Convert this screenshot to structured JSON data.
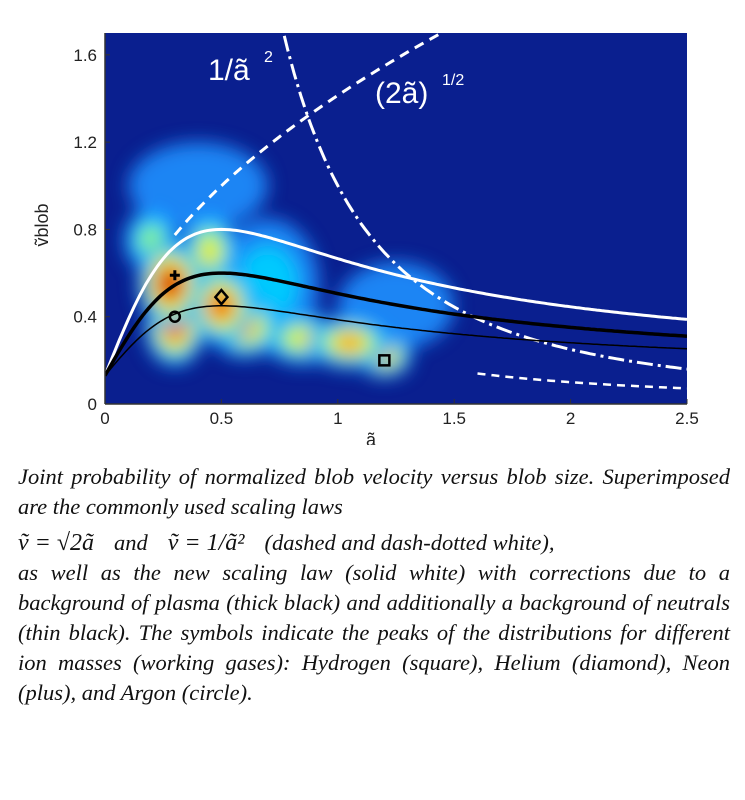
{
  "chart_data": {
    "type": "heatmap",
    "title": "",
    "xlabel": "ã",
    "ylabel": "ṽblob",
    "xlim": [
      0,
      2.5
    ],
    "ylim": [
      0,
      1.7
    ],
    "xticks": [
      "0",
      "0.5",
      "1",
      "1.5",
      "2",
      "2.5"
    ],
    "yticks": [
      "0",
      "0.4",
      "0.8",
      "1.2",
      "1.6"
    ],
    "colormap": [
      "#0a1f8f",
      "#1e90ff",
      "#00d2ff",
      "#9cff5a",
      "#ffe500",
      "#ff7a00",
      "#e01e00",
      "#b00000"
    ],
    "heat_blobs": [
      {
        "x": 0.2,
        "y": 0.75,
        "w": 0.12,
        "h": 0.15,
        "i": 0.45
      },
      {
        "x": 0.28,
        "y": 0.55,
        "w": 0.14,
        "h": 0.2,
        "i": 0.95
      },
      {
        "x": 0.3,
        "y": 0.35,
        "w": 0.13,
        "h": 0.18,
        "i": 0.9
      },
      {
        "x": 0.45,
        "y": 0.7,
        "w": 0.12,
        "h": 0.18,
        "i": 0.55
      },
      {
        "x": 0.5,
        "y": 0.45,
        "w": 0.14,
        "h": 0.18,
        "i": 0.85
      },
      {
        "x": 0.6,
        "y": 0.35,
        "w": 0.16,
        "h": 0.14,
        "i": 0.65
      },
      {
        "x": 0.85,
        "y": 0.3,
        "w": 0.18,
        "h": 0.12,
        "i": 0.55
      },
      {
        "x": 1.05,
        "y": 0.28,
        "w": 0.18,
        "h": 0.12,
        "i": 0.75
      },
      {
        "x": 1.2,
        "y": 0.22,
        "w": 0.12,
        "h": 0.1,
        "i": 0.7
      },
      {
        "x": 0.7,
        "y": 0.55,
        "w": 0.22,
        "h": 0.3,
        "i": 0.25
      },
      {
        "x": 1.25,
        "y": 0.45,
        "w": 0.25,
        "h": 0.2,
        "i": 0.2
      },
      {
        "x": 0.4,
        "y": 1.0,
        "w": 0.3,
        "h": 0.2,
        "i": 0.15
      }
    ],
    "curves": [
      {
        "name": "(2ã)^1/2",
        "style": "dashed white"
      },
      {
        "name": "1/ã^2",
        "style": "dash-dotted white"
      },
      {
        "name": "new scaling law",
        "style": "solid white",
        "peak": 0.8
      },
      {
        "name": "background of plasma",
        "style": "thick black",
        "peak": 0.6
      },
      {
        "name": "background of neutrals",
        "style": "thin black",
        "peak": 0.45
      }
    ],
    "markers": [
      {
        "name": "Hydrogen",
        "symbol": "square",
        "x": 1.2,
        "y": 0.2
      },
      {
        "name": "Helium",
        "symbol": "diamond",
        "x": 0.5,
        "y": 0.49
      },
      {
        "name": "Neon",
        "symbol": "plus",
        "x": 0.3,
        "y": 0.59
      },
      {
        "name": "Argon",
        "symbol": "circle",
        "x": 0.3,
        "y": 0.4
      }
    ],
    "annotations": [
      {
        "text": "1/ã",
        "sup": "2"
      },
      {
        "text": "(2ã)",
        "sup": "1/2"
      }
    ]
  },
  "caption": {
    "line1": "Joint probability of normalized blob velocity versus blob size. Superimposed are the commonly used scaling laws",
    "formula_a": "ṽ = √2ã",
    "formula_and": "and",
    "formula_b": "ṽ = 1/ã²",
    "formula_desc": "(dashed and dash-dotted white),",
    "line2": "as well as the new scaling law (solid white) with corrections due to a background of plasma (thick black) and additionally a background of neutrals (thin black). The symbols indicate the peaks of the distributions for different ion masses (working gases): Hydrogen (square), Helium (diamond), Neon (plus), and Argon (circle)."
  }
}
